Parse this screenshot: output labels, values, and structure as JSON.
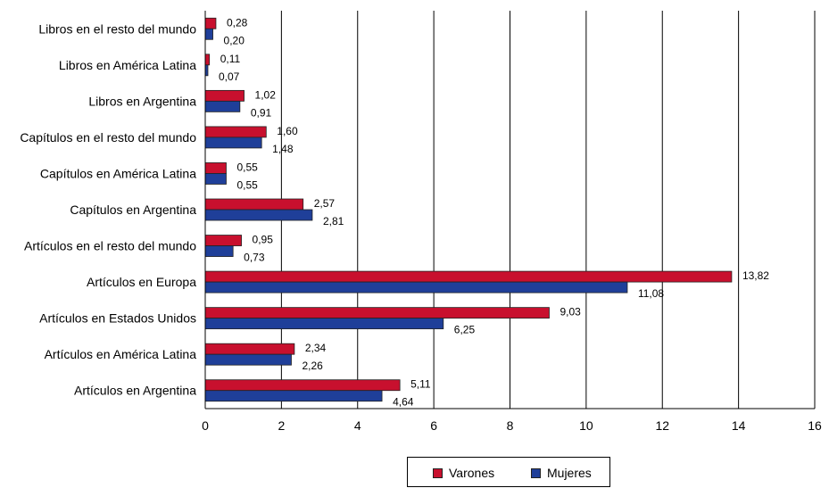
{
  "chart_data": {
    "type": "bar",
    "orientation": "horizontal",
    "categories": [
      "Libros en el resto del mundo",
      "Libros en América Latina",
      "Libros en Argentina",
      "Capítulos en el resto del mundo",
      "Capítulos en América Latina",
      "Capítulos en Argentina",
      "Artículos en el resto del mundo",
      "Artículos en Europa",
      "Artículos en Estados Unidos",
      "Artículos en América Latina",
      "Artículos en Argentina"
    ],
    "series": [
      {
        "name": "Varones",
        "color": "#c8102e",
        "values": [
          0.28,
          0.11,
          1.02,
          1.6,
          0.55,
          2.57,
          0.95,
          13.82,
          9.03,
          2.34,
          5.11
        ],
        "labels": [
          "0,28",
          "0,11",
          "1,02",
          "1,60",
          "0,55",
          "2,57",
          "0,95",
          "13,82",
          "9,03",
          "2,34",
          "5,11"
        ]
      },
      {
        "name": "Mujeres",
        "color": "#1f3f99",
        "values": [
          0.2,
          0.07,
          0.91,
          1.48,
          0.55,
          2.81,
          0.73,
          11.08,
          6.25,
          2.26,
          4.64
        ],
        "labels": [
          "0,20",
          "0,07",
          "0,91",
          "1,48",
          "0,55",
          "2,81",
          "0,73",
          "11,08",
          "6,25",
          "2,26",
          "4,64"
        ]
      }
    ],
    "xlim": [
      0,
      16
    ],
    "xticks": [
      "0",
      "2",
      "4",
      "6",
      "8",
      "10",
      "12",
      "14",
      "16"
    ],
    "grid": true,
    "legend_position": "bottom"
  }
}
